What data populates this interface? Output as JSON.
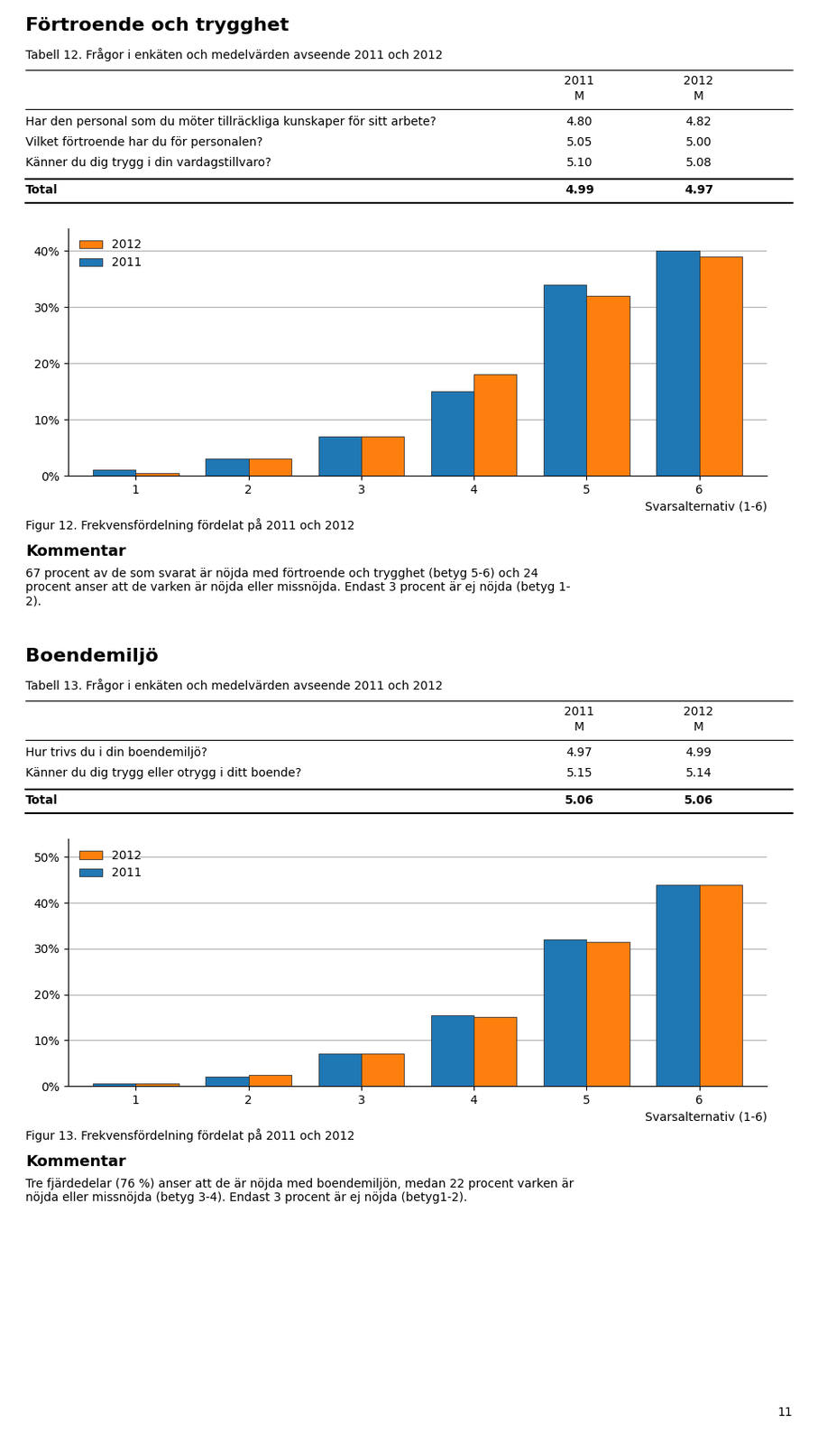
{
  "chart_data": [
    {
      "type": "bar",
      "title": "Förtroende och trygghet",
      "subtitle": "Tabell 12. Frågor i enkäten och medelvärden avseende 2011 och 2012",
      "table": {
        "columns": [
          "2011",
          "2012"
        ],
        "subheader": [
          "M",
          "M"
        ],
        "rows": [
          {
            "label": "Har den personal som du möter tillräckliga kunskaper för sitt arbete?",
            "cells": [
              "4.80",
              "4.82"
            ]
          },
          {
            "label": "Vilket förtroende har du för personalen?",
            "cells": [
              "5.05",
              "5.00"
            ]
          },
          {
            "label": "Känner du dig trygg i din vardagstillvaro?",
            "cells": [
              "5.10",
              "5.08"
            ]
          }
        ],
        "total": {
          "label": "Total",
          "cells": [
            "4.99",
            "4.97"
          ]
        }
      },
      "xlabel": "Svarsalternativ (1-6)",
      "categories": [
        1,
        2,
        3,
        4,
        5,
        6
      ],
      "series": [
        {
          "name": "2011",
          "values": [
            1.0,
            3.0,
            7.0,
            15.0,
            34.0,
            40.0
          ]
        },
        {
          "name": "2012",
          "values": [
            0.5,
            3.0,
            7.0,
            18.0,
            32.0,
            39.0
          ]
        }
      ],
      "ylim": [
        0,
        44
      ],
      "yticks": [
        {
          "value": 0,
          "label": "0%"
        },
        {
          "value": 10,
          "label": "10%"
        },
        {
          "value": 20,
          "label": "20%"
        },
        {
          "value": 30,
          "label": "30%"
        },
        {
          "value": 40,
          "label": "40%"
        }
      ],
      "grid": true,
      "legend": "upper left",
      "caption": "Figur 12. Frekvensfördelning fördelat på 2011 och 2012",
      "comment_title": "Kommentar",
      "comment_text": "67 procent av de som svarat är nöjda med förtroende och trygghet (betyg 5-6) och 24\nprocent anser att de varken är nöjda eller missnöjda. Endast 3 procent är ej nöjda (betyg 1-\n2)."
    },
    {
      "type": "bar",
      "title": "Boendemiljö",
      "subtitle": "Tabell 13. Frågor i enkäten och medelvärden avseende 2011 och 2012",
      "table": {
        "columns": [
          "2011",
          "2012"
        ],
        "subheader": [
          "M",
          "M"
        ],
        "rows": [
          {
            "label": "Hur trivs du i din boendemiljö?",
            "cells": [
              "4.97",
              "4.99"
            ]
          },
          {
            "label": "Känner du dig trygg eller otrygg i ditt boende?",
            "cells": [
              "5.15",
              "5.14"
            ]
          }
        ],
        "total": {
          "label": "Total",
          "cells": [
            "5.06",
            "5.06"
          ]
        }
      },
      "xlabel": "Svarsalternativ (1-6)",
      "categories": [
        1,
        2,
        3,
        4,
        5,
        6
      ],
      "series": [
        {
          "name": "2011",
          "values": [
            0.5,
            2.0,
            7.0,
            15.5,
            32.0,
            44.0
          ]
        },
        {
          "name": "2012",
          "values": [
            0.5,
            2.5,
            7.0,
            15.0,
            31.5,
            44.0
          ]
        }
      ],
      "ylim": [
        0,
        54
      ],
      "yticks": [
        {
          "value": 0,
          "label": "0%"
        },
        {
          "value": 10,
          "label": "10%"
        },
        {
          "value": 20,
          "label": "20%"
        },
        {
          "value": 30,
          "label": "30%"
        },
        {
          "value": 40,
          "label": "40%"
        },
        {
          "value": 50,
          "label": "50%"
        }
      ],
      "grid": true,
      "legend": "upper left",
      "caption": "Figur 13. Frekvensfördelning fördelat på 2011 och 2012",
      "comment_title": "Kommentar",
      "comment_text": "Tre fjärdedelar (76 %) anser att de är nöjda med boendemiljön, medan 22 procent varken är\nnöjda eller missnöjda (betyg 3-4). Endast 3 procent är ej nöjda (betyg1-2)."
    }
  ],
  "page_number": "11"
}
